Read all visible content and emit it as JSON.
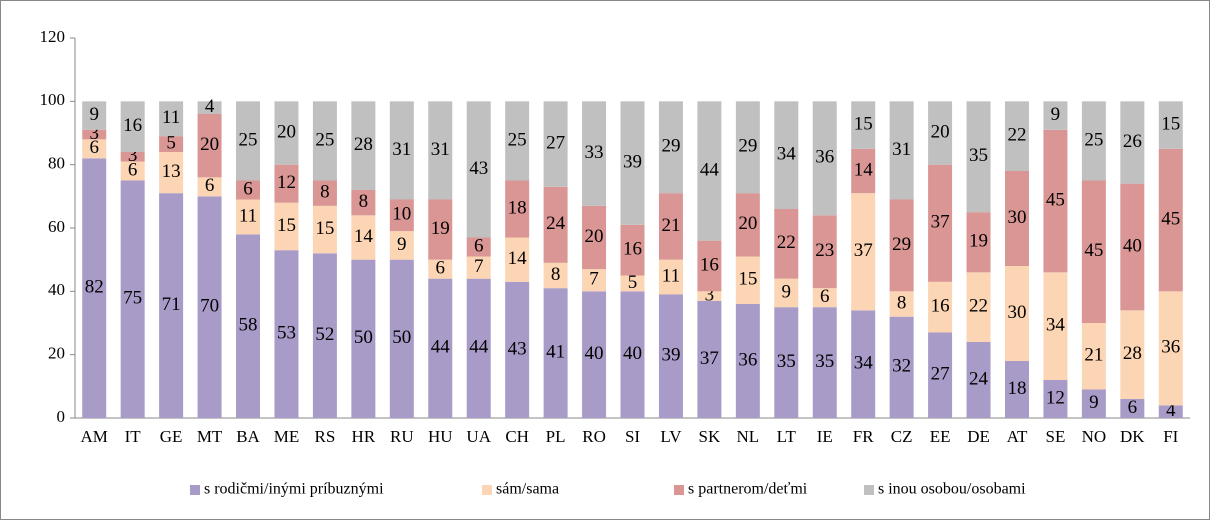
{
  "chart_data": {
    "type": "stacked_bar",
    "categories": [
      "AM",
      "IT",
      "GE",
      "MT",
      "BA",
      "ME",
      "RS",
      "HR",
      "RU",
      "HU",
      "UA",
      "CH",
      "PL",
      "RO",
      "SI",
      "LV",
      "SK",
      "NL",
      "LT",
      "IE",
      "FR",
      "CZ",
      "EE",
      "DE",
      "AT",
      "SE",
      "NO",
      "DK",
      "FI"
    ],
    "series": [
      {
        "name": "s rodičmi/inými príbuznými",
        "color": "#a99bc8",
        "values": [
          82,
          75,
          71,
          70,
          58,
          53,
          52,
          50,
          50,
          44,
          44,
          43,
          41,
          40,
          40,
          39,
          37,
          36,
          35,
          35,
          34,
          32,
          27,
          24,
          18,
          12,
          9,
          6,
          4
        ]
      },
      {
        "name": "sám/sama",
        "color": "#fcd5b5",
        "values": [
          6,
          6,
          13,
          6,
          11,
          15,
          15,
          14,
          9,
          6,
          7,
          14,
          8,
          7,
          5,
          11,
          3,
          15,
          9,
          6,
          37,
          8,
          16,
          22,
          30,
          34,
          21,
          28,
          36
        ]
      },
      {
        "name": "s partnerom/deťmi",
        "color": "#d99694",
        "values": [
          3,
          3,
          5,
          20,
          6,
          12,
          8,
          8,
          10,
          19,
          6,
          18,
          24,
          20,
          16,
          21,
          16,
          20,
          22,
          23,
          14,
          29,
          37,
          19,
          30,
          45,
          45,
          40,
          45
        ]
      },
      {
        "name": "s inou osobou/osobami",
        "color": "#c0c0c0",
        "values": [
          9,
          16,
          11,
          4,
          25,
          20,
          25,
          28,
          31,
          31,
          43,
          25,
          27,
          33,
          39,
          29,
          44,
          29,
          34,
          36,
          15,
          31,
          20,
          35,
          22,
          9,
          25,
          26,
          15
        ]
      }
    ],
    "ylim": [
      0,
      120
    ],
    "yticks": [
      0,
      20,
      40,
      60,
      80,
      100,
      120
    ],
    "grid": false,
    "legend": "bottom"
  }
}
